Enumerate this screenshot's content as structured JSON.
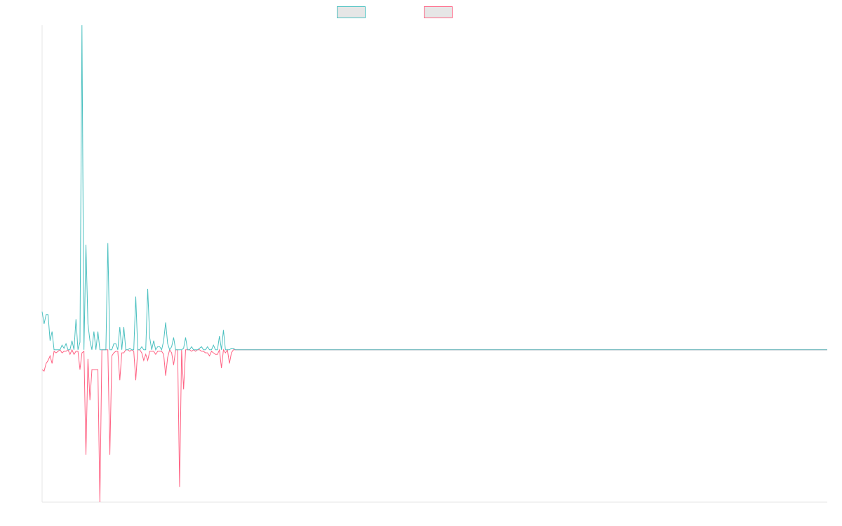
{
  "chart_data": {
    "type": "line",
    "title": "",
    "xlabel": "",
    "ylabel": "",
    "grid": false,
    "legend_position": "top-center",
    "x_count": 395,
    "ylim": [
      -1.0,
      2.13
    ],
    "baseline": 0,
    "series": [
      {
        "name": "",
        "color": "#4bc0c0",
        "sparse_values": [
          [
            0,
            0.25
          ],
          [
            1,
            0.17
          ],
          [
            2,
            0.23
          ],
          [
            3,
            0.23
          ],
          [
            4,
            0.06
          ],
          [
            5,
            0.12
          ],
          [
            6,
            0.0
          ],
          [
            7,
            0.0
          ],
          [
            8,
            0.0
          ],
          [
            9,
            0.0
          ],
          [
            10,
            0.03
          ],
          [
            11,
            0.01
          ],
          [
            12,
            0.04
          ],
          [
            13,
            0.0
          ],
          [
            14,
            0.0
          ],
          [
            15,
            0.06
          ],
          [
            16,
            0.0
          ],
          [
            17,
            0.2
          ],
          [
            18,
            0.0
          ],
          [
            19,
            0.05
          ],
          [
            20,
            2.13
          ],
          [
            21,
            0.0
          ],
          [
            22,
            0.69
          ],
          [
            23,
            0.17
          ],
          [
            24,
            0.06
          ],
          [
            25,
            0.0
          ],
          [
            26,
            0.12
          ],
          [
            27,
            0.0
          ],
          [
            28,
            0.12
          ],
          [
            29,
            0.0
          ],
          [
            30,
            0.0
          ],
          [
            31,
            0.0
          ],
          [
            32,
            0.0
          ],
          [
            33,
            0.7
          ],
          [
            34,
            0.0
          ],
          [
            35,
            0.0
          ],
          [
            36,
            0.04
          ],
          [
            37,
            0.04
          ],
          [
            38,
            0.0
          ],
          [
            39,
            0.15
          ],
          [
            40,
            0.0
          ],
          [
            41,
            0.15
          ],
          [
            42,
            0.0
          ],
          [
            43,
            0.0
          ],
          [
            44,
            0.01
          ],
          [
            45,
            0.0
          ],
          [
            46,
            0.0
          ],
          [
            47,
            0.35
          ],
          [
            48,
            0.0
          ],
          [
            49,
            0.0
          ],
          [
            50,
            0.02
          ],
          [
            51,
            0.0
          ],
          [
            52,
            0.0
          ],
          [
            53,
            0.4
          ],
          [
            54,
            0.08
          ],
          [
            55,
            0.0
          ],
          [
            56,
            0.06
          ],
          [
            57,
            0.0
          ],
          [
            58,
            0.02
          ],
          [
            59,
            0.02
          ],
          [
            60,
            0.0
          ],
          [
            61,
            0.06
          ],
          [
            62,
            0.18
          ],
          [
            63,
            0.04
          ],
          [
            64,
            0.0
          ],
          [
            65,
            0.02
          ],
          [
            66,
            0.08
          ],
          [
            67,
            0.0
          ],
          [
            68,
            0.0
          ],
          [
            69,
            0.0
          ],
          [
            70,
            0.0
          ],
          [
            71,
            0.01
          ],
          [
            72,
            0.08
          ],
          [
            73,
            0.0
          ],
          [
            74,
            0.0
          ],
          [
            75,
            0.02
          ],
          [
            76,
            0.0
          ],
          [
            77,
            0.0
          ],
          [
            78,
            0.0
          ],
          [
            79,
            0.01
          ],
          [
            80,
            0.02
          ],
          [
            81,
            0.0
          ],
          [
            82,
            0.0
          ],
          [
            83,
            0.02
          ],
          [
            84,
            0.0
          ],
          [
            85,
            0.0
          ],
          [
            86,
            0.03
          ],
          [
            87,
            0.0
          ],
          [
            88,
            0.0
          ],
          [
            89,
            0.09
          ],
          [
            90,
            0.0
          ],
          [
            91,
            0.13
          ],
          [
            92,
            0.0
          ],
          [
            93,
            0.0
          ],
          [
            94,
            0.0
          ],
          [
            95,
            0.01
          ],
          [
            96,
            0.01
          ],
          [
            97,
            0.0
          ]
        ]
      },
      {
        "name": "",
        "color": "#ff6384",
        "sparse_values": [
          [
            0,
            -0.13
          ],
          [
            1,
            -0.14
          ],
          [
            2,
            -0.09
          ],
          [
            3,
            -0.07
          ],
          [
            4,
            -0.04
          ],
          [
            5,
            -0.09
          ],
          [
            6,
            -0.01
          ],
          [
            7,
            -0.02
          ],
          [
            8,
            -0.01
          ],
          [
            9,
            0.0
          ],
          [
            10,
            -0.02
          ],
          [
            11,
            -0.01
          ],
          [
            12,
            -0.01
          ],
          [
            13,
            -0.0
          ],
          [
            14,
            -0.03
          ],
          [
            15,
            0.0
          ],
          [
            16,
            -0.03
          ],
          [
            17,
            -0.01
          ],
          [
            18,
            -0.01
          ],
          [
            19,
            -0.13
          ],
          [
            20,
            -0.02
          ],
          [
            21,
            -0.01
          ],
          [
            22,
            -0.69
          ],
          [
            23,
            -0.06
          ],
          [
            24,
            -0.33
          ],
          [
            25,
            -0.13
          ],
          [
            26,
            -0.13
          ],
          [
            27,
            -0.13
          ],
          [
            28,
            -0.13
          ],
          [
            29,
            -1.0
          ],
          [
            30,
            0.0
          ],
          [
            31,
            0.0
          ],
          [
            32,
            0.0
          ],
          [
            33,
            0.0
          ],
          [
            34,
            -0.69
          ],
          [
            35,
            -0.04
          ],
          [
            36,
            -0.02
          ],
          [
            37,
            -0.01
          ],
          [
            38,
            -0.01
          ],
          [
            39,
            -0.2
          ],
          [
            40,
            -0.02
          ],
          [
            41,
            -0.02
          ],
          [
            42,
            0.0
          ],
          [
            43,
            0.0
          ],
          [
            44,
            -0.01
          ],
          [
            45,
            0.0
          ],
          [
            46,
            -0.01
          ],
          [
            47,
            -0.2
          ],
          [
            48,
            0.0
          ],
          [
            49,
            0.0
          ],
          [
            50,
            -0.02
          ],
          [
            51,
            -0.07
          ],
          [
            52,
            -0.03
          ],
          [
            53,
            -0.07
          ],
          [
            54,
            -0.01
          ],
          [
            55,
            -0.01
          ],
          [
            56,
            -0.01
          ],
          [
            57,
            -0.03
          ],
          [
            58,
            -0.01
          ],
          [
            59,
            -0.01
          ],
          [
            60,
            -0.01
          ],
          [
            61,
            -0.03
          ],
          [
            62,
            -0.17
          ],
          [
            63,
            -0.05
          ],
          [
            64,
            0.0
          ],
          [
            65,
            -0.02
          ],
          [
            66,
            -0.1
          ],
          [
            67,
            0.0
          ],
          [
            68,
            0.0
          ],
          [
            69,
            -0.9
          ],
          [
            70,
            0.0
          ],
          [
            71,
            -0.26
          ],
          [
            72,
            0.0
          ],
          [
            73,
            0.0
          ],
          [
            74,
            0.0
          ],
          [
            75,
            -0.01
          ],
          [
            76,
            0.0
          ],
          [
            77,
            -0.01
          ],
          [
            78,
            0.0
          ],
          [
            79,
            0.0
          ],
          [
            80,
            -0.01
          ],
          [
            81,
            -0.01
          ],
          [
            82,
            -0.02
          ],
          [
            83,
            -0.02
          ],
          [
            84,
            -0.04
          ],
          [
            85,
            -0.01
          ],
          [
            86,
            -0.02
          ],
          [
            87,
            -0.03
          ],
          [
            88,
            -0.03
          ],
          [
            89,
            -0.0
          ],
          [
            90,
            -0.12
          ],
          [
            91,
            0.0
          ],
          [
            92,
            -0.02
          ],
          [
            93,
            0.0
          ],
          [
            94,
            -0.09
          ],
          [
            95,
            -0.02
          ],
          [
            96,
            0.0
          ],
          [
            97,
            0.0
          ]
        ]
      }
    ]
  }
}
